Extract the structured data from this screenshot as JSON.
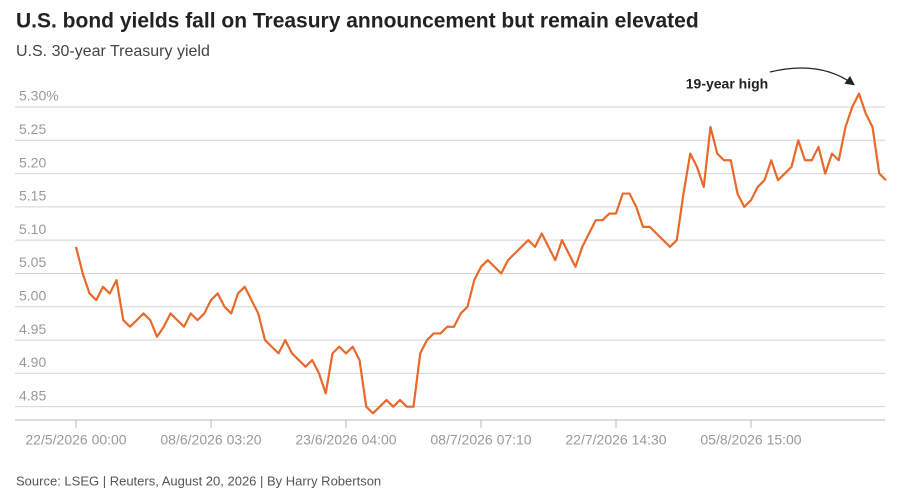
{
  "chart_data": {
    "type": "line",
    "title": "U.S. bond yields fall on Treasury announcement but remain elevated",
    "subtitle": "U.S. 30-year Treasury yield",
    "source": "Source: LSEG | Reuters, August 20, 2026 | By Harry Robertson",
    "annotation": "19-year high",
    "color": "#e8692a",
    "categories": [
      "22/5/2026 00:00",
      null,
      null,
      null,
      null,
      null,
      null,
      null,
      null,
      null,
      null,
      null,
      null,
      null,
      null,
      null,
      null,
      null,
      null,
      null,
      "08/6/2026 03:20",
      null,
      null,
      null,
      null,
      null,
      null,
      null,
      null,
      null,
      null,
      null,
      null,
      null,
      null,
      null,
      null,
      null,
      null,
      null,
      "23/6/2026 04:00",
      null,
      null,
      null,
      null,
      null,
      null,
      null,
      null,
      null,
      null,
      null,
      null,
      null,
      null,
      null,
      null,
      null,
      null,
      null,
      "08/7/2026 07:10",
      null,
      null,
      null,
      null,
      null,
      null,
      null,
      null,
      null,
      null,
      null,
      null,
      null,
      null,
      null,
      null,
      null,
      null,
      null,
      "22/7/2026 14:30",
      null,
      null,
      null,
      null,
      null,
      null,
      null,
      null,
      null,
      null,
      null,
      null,
      null,
      null,
      null,
      null,
      null,
      null,
      null,
      "05/8/2026 15:00",
      null,
      null,
      null,
      null,
      null,
      null,
      null,
      null,
      null,
      null,
      null,
      null,
      null,
      null,
      null,
      null,
      null,
      null,
      null,
      null
    ],
    "values": [
      5.09,
      5.05,
      5.02,
      5.01,
      5.03,
      5.02,
      5.04,
      4.98,
      4.97,
      4.98,
      4.99,
      4.98,
      4.955,
      4.97,
      4.99,
      4.98,
      4.97,
      4.99,
      4.98,
      4.99,
      5.01,
      5.02,
      5.0,
      4.99,
      5.02,
      5.03,
      5.01,
      4.99,
      4.95,
      4.94,
      4.93,
      4.95,
      4.93,
      4.92,
      4.91,
      4.92,
      4.9,
      4.87,
      4.93,
      4.94,
      4.93,
      4.94,
      4.92,
      4.85,
      4.84,
      4.85,
      4.86,
      4.85,
      4.86,
      4.85,
      4.85,
      4.93,
      4.95,
      4.96,
      4.96,
      4.97,
      4.97,
      4.99,
      5.0,
      5.04,
      5.06,
      5.07,
      5.06,
      5.05,
      5.07,
      5.08,
      5.09,
      5.1,
      5.09,
      5.11,
      5.09,
      5.07,
      5.1,
      5.08,
      5.06,
      5.09,
      5.11,
      5.13,
      5.13,
      5.14,
      5.14,
      5.17,
      5.17,
      5.15,
      5.12,
      5.12,
      5.11,
      5.1,
      5.09,
      5.1,
      5.17,
      5.23,
      5.21,
      5.18,
      5.27,
      5.23,
      5.22,
      5.22,
      5.17,
      5.15,
      5.16,
      5.18,
      5.19,
      5.22,
      5.19,
      5.2,
      5.21,
      5.25,
      5.22,
      5.22,
      5.24,
      5.2,
      5.23,
      5.22,
      5.27,
      5.3,
      5.32,
      5.29,
      5.27,
      5.2,
      5.19
    ],
    "ylim": [
      4.83,
      5.33
    ],
    "yticks": [
      4.85,
      {
        "value": 4.9,
        "label": "4.90"
      },
      4.95,
      {
        "value": 5.0,
        "label": "5.00"
      },
      5.05,
      {
        "value": 5.1,
        "label": "5.10"
      },
      5.15,
      {
        "value": 5.2,
        "label": "5.20"
      },
      5.25,
      {
        "value": 5.3,
        "label": "5.30%"
      }
    ],
    "grid": true
  }
}
